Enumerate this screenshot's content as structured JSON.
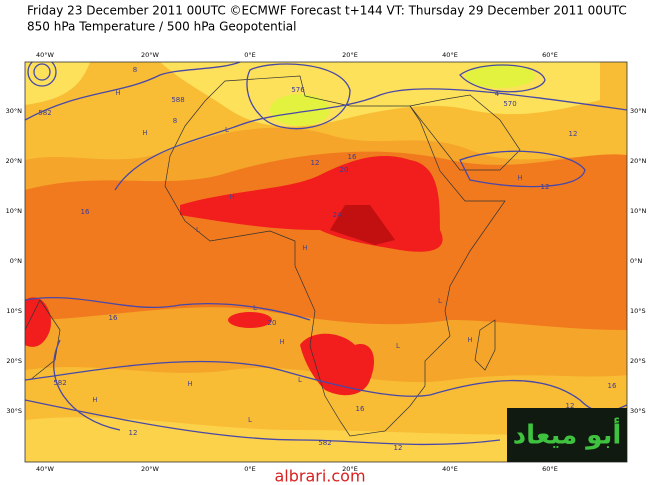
{
  "header": {
    "line1": "Friday 23 December 2011 00UTC ©ECMWF Forecast t+144 VT: Thursday 29 December 2011 00UTC",
    "line2": "850 hPa Temperature / 500 hPa Geopotential"
  },
  "map": {
    "lon_labels": [
      "40°W",
      "20°W",
      "0°E",
      "20°E",
      "40°E",
      "60°E"
    ],
    "lat_labels": [
      "30°N",
      "20°N",
      "10°N",
      "0°N",
      "10°S",
      "20°S",
      "30°S"
    ],
    "contour_labels": [
      "588",
      "582",
      "576",
      "570",
      "12",
      "16",
      "20",
      "24",
      "8",
      "4",
      "16",
      "12",
      "16",
      "12",
      "20",
      "16",
      "582",
      "582",
      "12",
      "12",
      "16",
      "12",
      "8"
    ],
    "highs_lows": [
      "H",
      "H",
      "L",
      "H",
      "L",
      "H",
      "L",
      "H",
      "L",
      "H",
      "L",
      "H",
      "H",
      "L",
      "H",
      "L"
    ]
  },
  "watermark": {
    "logo": "أبو ميعاد",
    "site": "albrari.com"
  }
}
